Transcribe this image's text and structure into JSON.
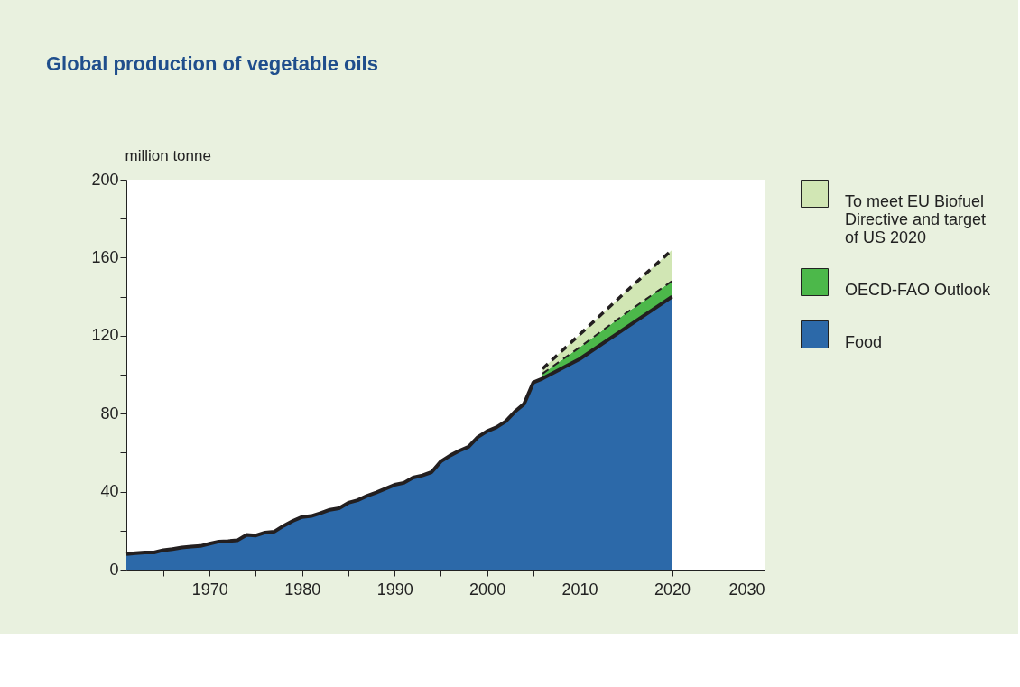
{
  "chart_data": {
    "type": "area",
    "title": "Global production of vegetable oils",
    "ylabel": "million tonne",
    "stacked": true,
    "x": [
      1961,
      1962,
      1963,
      1964,
      1965,
      1966,
      1967,
      1968,
      1969,
      1970,
      1971,
      1972,
      1973,
      1974,
      1975,
      1976,
      1977,
      1978,
      1979,
      1980,
      1981,
      1982,
      1983,
      1984,
      1985,
      1986,
      1987,
      1988,
      1989,
      1990,
      1991,
      1992,
      1993,
      1994,
      1995,
      1996,
      1997,
      1998,
      1999,
      2000,
      2001,
      2002,
      2003,
      2004,
      2005,
      2006,
      2010,
      2015,
      2020
    ],
    "series": [
      {
        "name": "Food",
        "color": "#2c69a9",
        "line_style": "solid",
        "values": [
          8,
          8.5,
          8.8,
          8.8,
          10,
          10.5,
          11.3,
          11.8,
          12.1,
          13.3,
          14.4,
          14.6,
          15,
          17.8,
          17.5,
          19,
          19.5,
          22.5,
          25,
          27,
          27.5,
          29,
          30.7,
          31.5,
          34.3,
          35.6,
          37.8,
          39.5,
          41.5,
          43.5,
          44.5,
          47.2,
          48.3,
          50,
          55.5,
          58.5,
          61,
          63,
          68,
          71,
          73,
          76,
          81,
          85,
          96,
          98,
          108,
          124,
          140
        ]
      },
      {
        "name": "OECD-FAO Outlook",
        "color": "#4cb84a",
        "line_style": "dashed",
        "values": [
          null,
          null,
          null,
          null,
          null,
          null,
          null,
          null,
          null,
          null,
          null,
          null,
          null,
          null,
          null,
          null,
          null,
          null,
          null,
          null,
          null,
          null,
          null,
          null,
          null,
          null,
          null,
          null,
          null,
          null,
          null,
          null,
          null,
          null,
          null,
          null,
          null,
          null,
          null,
          null,
          null,
          null,
          null,
          null,
          null,
          2.5,
          6,
          7.5,
          8
        ]
      },
      {
        "name": "To meet EU Biofuel Directive and target of US 2020",
        "color": "#d1e6b4",
        "line_style": "dashed",
        "values": [
          null,
          null,
          null,
          null,
          null,
          null,
          null,
          null,
          null,
          null,
          null,
          null,
          null,
          null,
          null,
          null,
          null,
          null,
          null,
          null,
          null,
          null,
          null,
          null,
          null,
          null,
          null,
          null,
          null,
          null,
          null,
          null,
          null,
          null,
          null,
          null,
          null,
          null,
          null,
          null,
          null,
          null,
          null,
          null,
          null,
          2.5,
          6.5,
          11,
          16
        ]
      }
    ],
    "xlim": [
      1961,
      2030
    ],
    "xticks": [
      {
        "value": 1965,
        "label": null
      },
      1970,
      {
        "value": 1975,
        "label": null
      },
      1980,
      {
        "value": 1985,
        "label": null
      },
      1990,
      {
        "value": 1995,
        "label": null
      },
      2000,
      {
        "value": 2005,
        "label": null
      },
      2010,
      {
        "value": 2015,
        "label": null
      },
      2020,
      {
        "value": 2025,
        "label": null
      },
      2030
    ],
    "ylim": [
      0,
      200
    ],
    "yticks": [
      0,
      {
        "value": 20,
        "label": null
      },
      40,
      {
        "value": 60,
        "label": null
      },
      80,
      {
        "value": 100,
        "label": null
      },
      120,
      {
        "value": 140,
        "label": null
      },
      160,
      {
        "value": 180,
        "label": null
      },
      200
    ],
    "grid": false,
    "legend": "right"
  }
}
